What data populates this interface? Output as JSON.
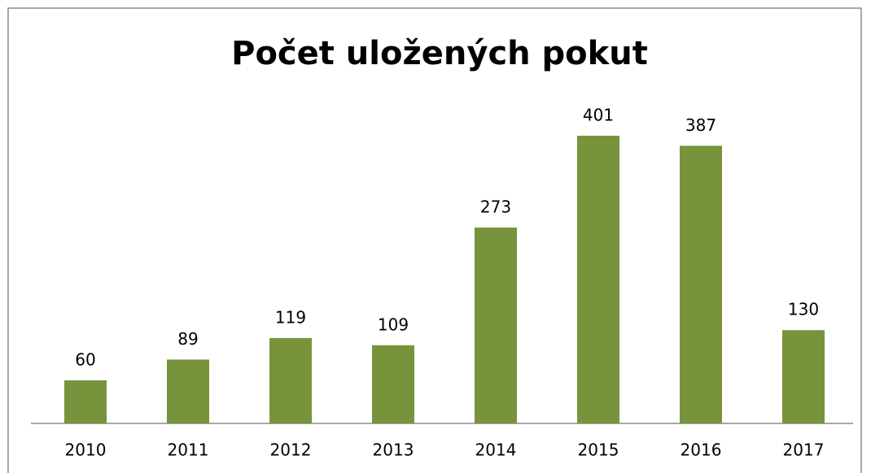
{
  "chart_data": {
    "type": "bar",
    "title": "Počet uložených pokut",
    "categories": [
      "2010",
      "2011",
      "2012",
      "2013",
      "2014",
      "2015",
      "2016",
      "2017"
    ],
    "values": [
      60,
      89,
      119,
      109,
      273,
      401,
      387,
      130
    ],
    "color": "#77933c"
  }
}
